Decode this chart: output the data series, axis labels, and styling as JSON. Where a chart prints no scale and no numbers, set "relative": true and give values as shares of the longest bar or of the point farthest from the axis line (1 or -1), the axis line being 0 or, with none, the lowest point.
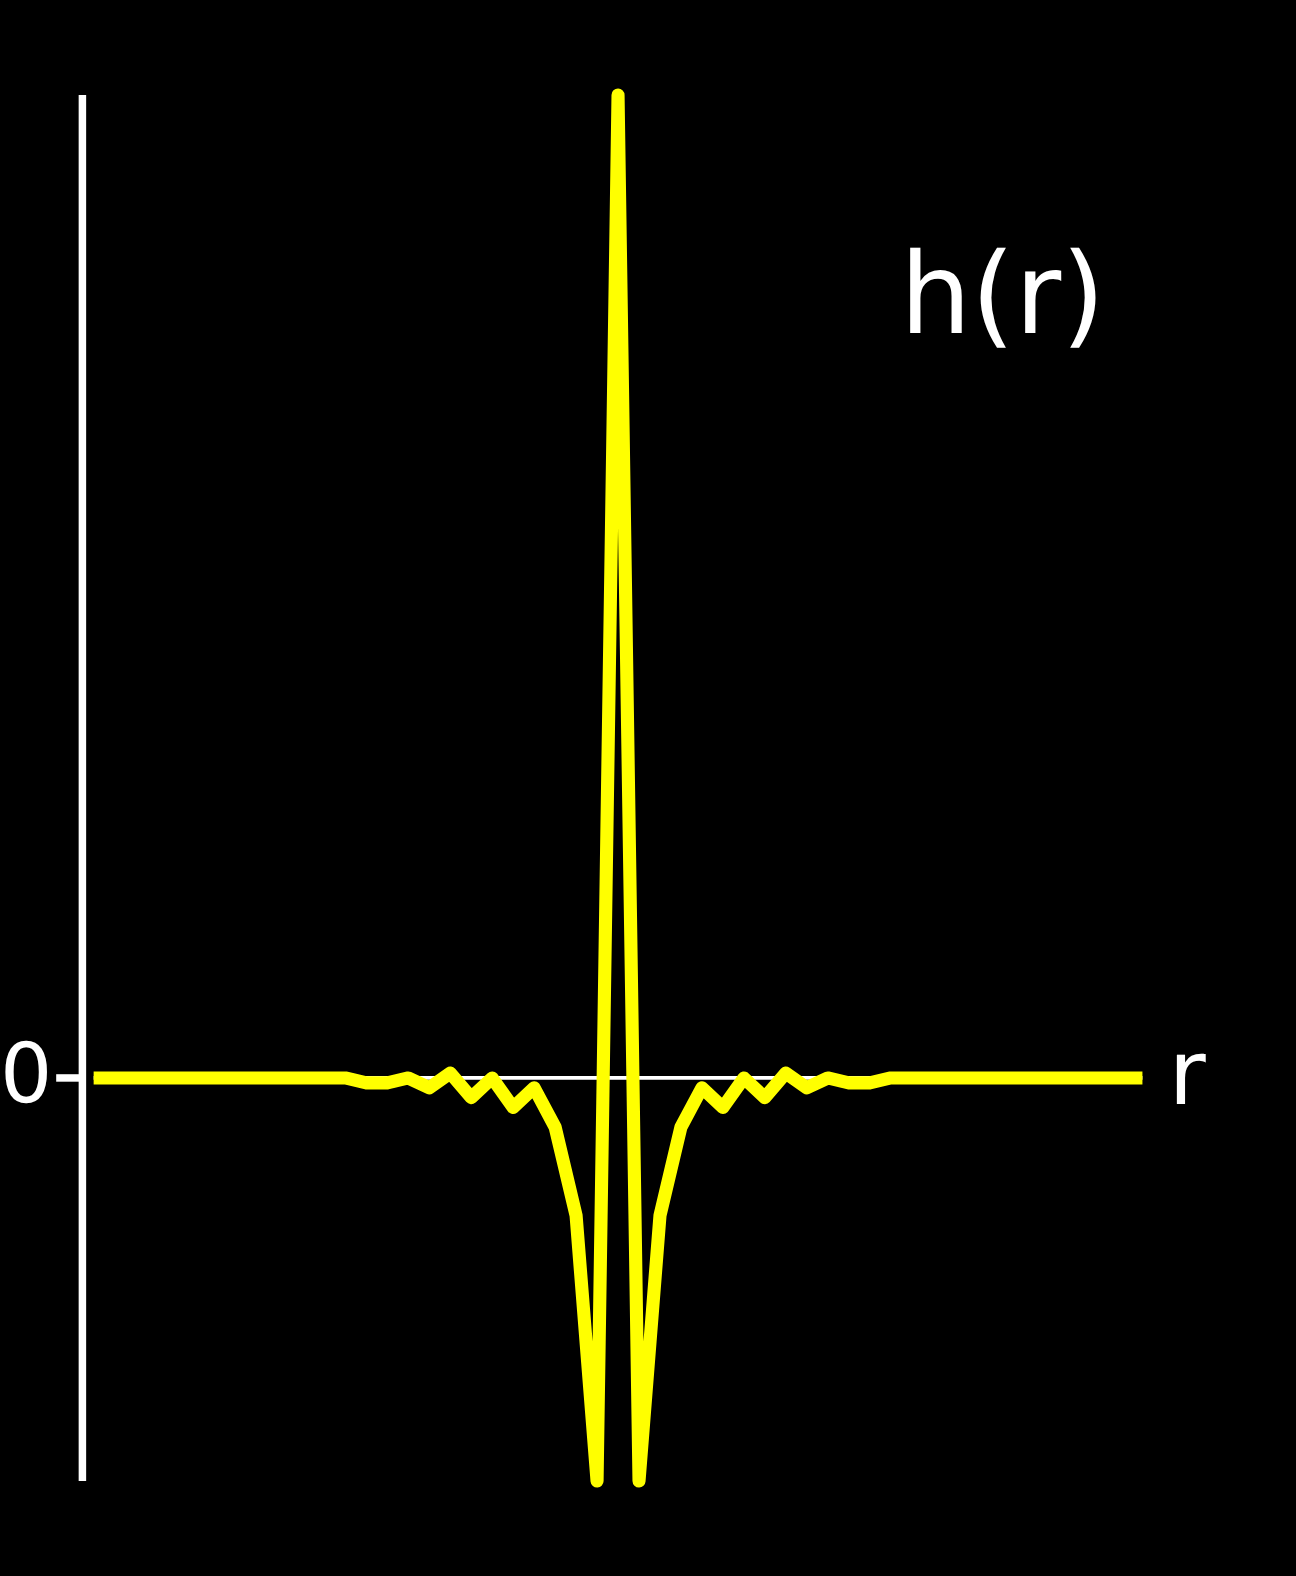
{
  "chart_data": {
    "type": "line",
    "title": "h(r)",
    "xlabel": "r",
    "relative": true,
    "annotations": [
      "0"
    ],
    "categories": [
      null,
      null,
      null,
      null,
      null,
      null,
      null,
      null,
      null,
      null,
      null,
      null,
      null,
      null,
      null,
      null,
      null,
      null,
      null,
      null,
      null,
      null,
      null,
      null,
      null,
      null,
      null,
      null,
      null,
      null,
      null,
      null,
      null,
      null,
      null,
      null,
      null,
      null,
      null,
      null,
      null,
      null,
      null,
      null,
      null,
      null,
      null,
      null,
      null,
      null,
      null
    ],
    "series": [
      {
        "color": "#ffff00",
        "values": [
          0,
          0,
          0,
          0,
          0,
          0,
          0,
          0,
          0,
          0,
          0,
          0,
          0,
          -0.005,
          -0.005,
          0,
          -0.01,
          0.005,
          -0.02,
          0,
          -0.03,
          -0.01,
          -0.05,
          -0.14,
          -0.41,
          1,
          -0.41,
          -0.14,
          -0.05,
          -0.01,
          -0.03,
          0,
          -0.02,
          0.005,
          -0.01,
          0,
          -0.005,
          -0.005,
          0,
          0,
          0,
          0,
          0,
          0,
          0,
          0,
          0,
          0,
          0,
          0,
          0
        ]
      }
    ]
  }
}
